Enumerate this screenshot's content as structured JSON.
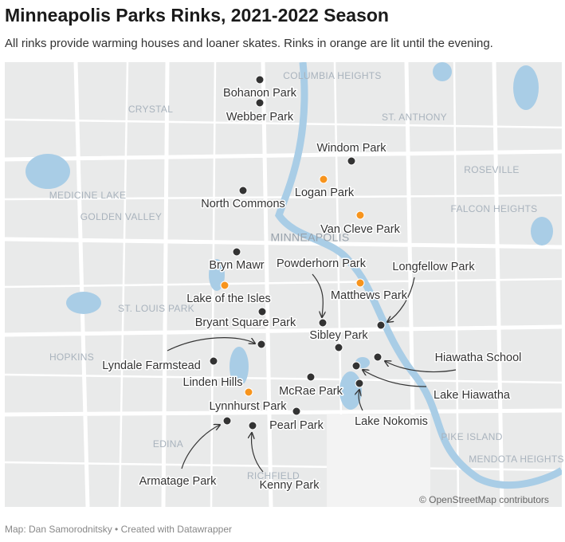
{
  "header": {
    "title": "Minneapolis Parks Rinks, 2021-2022 Season",
    "subtitle": "All rinks provide warming houses and loaner skates. Rinks in orange are lit until the evening."
  },
  "map": {
    "colors": {
      "lit": "#f7941d",
      "unlit": "#333333"
    },
    "places": [
      "COLUMBIA HEIGHTS",
      "CRYSTAL",
      "ST. ANTHONY",
      "ROSEVILLE",
      "MEDICINE LAKE",
      "GOLDEN VALLEY",
      "FALCON HEIGHTS",
      "MINNEAPOLIS",
      "ST. LOUIS PARK",
      "HOPKINS",
      "EDINA",
      "PIKE ISLAND",
      "MENDOTA HEIGHTS",
      "RICHFIELD"
    ],
    "rinks": [
      {
        "name": "Bohanon Park",
        "lit": false
      },
      {
        "name": "Webber Park",
        "lit": false
      },
      {
        "name": "Windom Park",
        "lit": false
      },
      {
        "name": "Logan Park",
        "lit": true
      },
      {
        "name": "North Commons",
        "lit": false
      },
      {
        "name": "Van Cleve Park",
        "lit": true
      },
      {
        "name": "Bryn Mawr",
        "lit": false
      },
      {
        "name": "Powderhorn Park",
        "lit": false
      },
      {
        "name": "Longfellow Park",
        "lit": false
      },
      {
        "name": "Matthews Park",
        "lit": true
      },
      {
        "name": "Lake of the Isles",
        "lit": true
      },
      {
        "name": "Bryant Square Park",
        "lit": false
      },
      {
        "name": "Sibley Park",
        "lit": false
      },
      {
        "name": "Lyndale Farmstead",
        "lit": false
      },
      {
        "name": "Linden Hills",
        "lit": false
      },
      {
        "name": "Hiawatha School",
        "lit": false
      },
      {
        "name": "McRae Park",
        "lit": false
      },
      {
        "name": "Lake Hiawatha",
        "lit": false
      },
      {
        "name": "Lynnhurst Park",
        "lit": true
      },
      {
        "name": "Lake Nokomis",
        "lit": false
      },
      {
        "name": "Pearl Park",
        "lit": false
      },
      {
        "name": "Armatage Park",
        "lit": false
      },
      {
        "name": "Kenny Park",
        "lit": false
      }
    ],
    "attribution": "© OpenStreetMap contributors"
  },
  "footer": "Map: Dan Samorodnitsky • Created with Datawrapper"
}
